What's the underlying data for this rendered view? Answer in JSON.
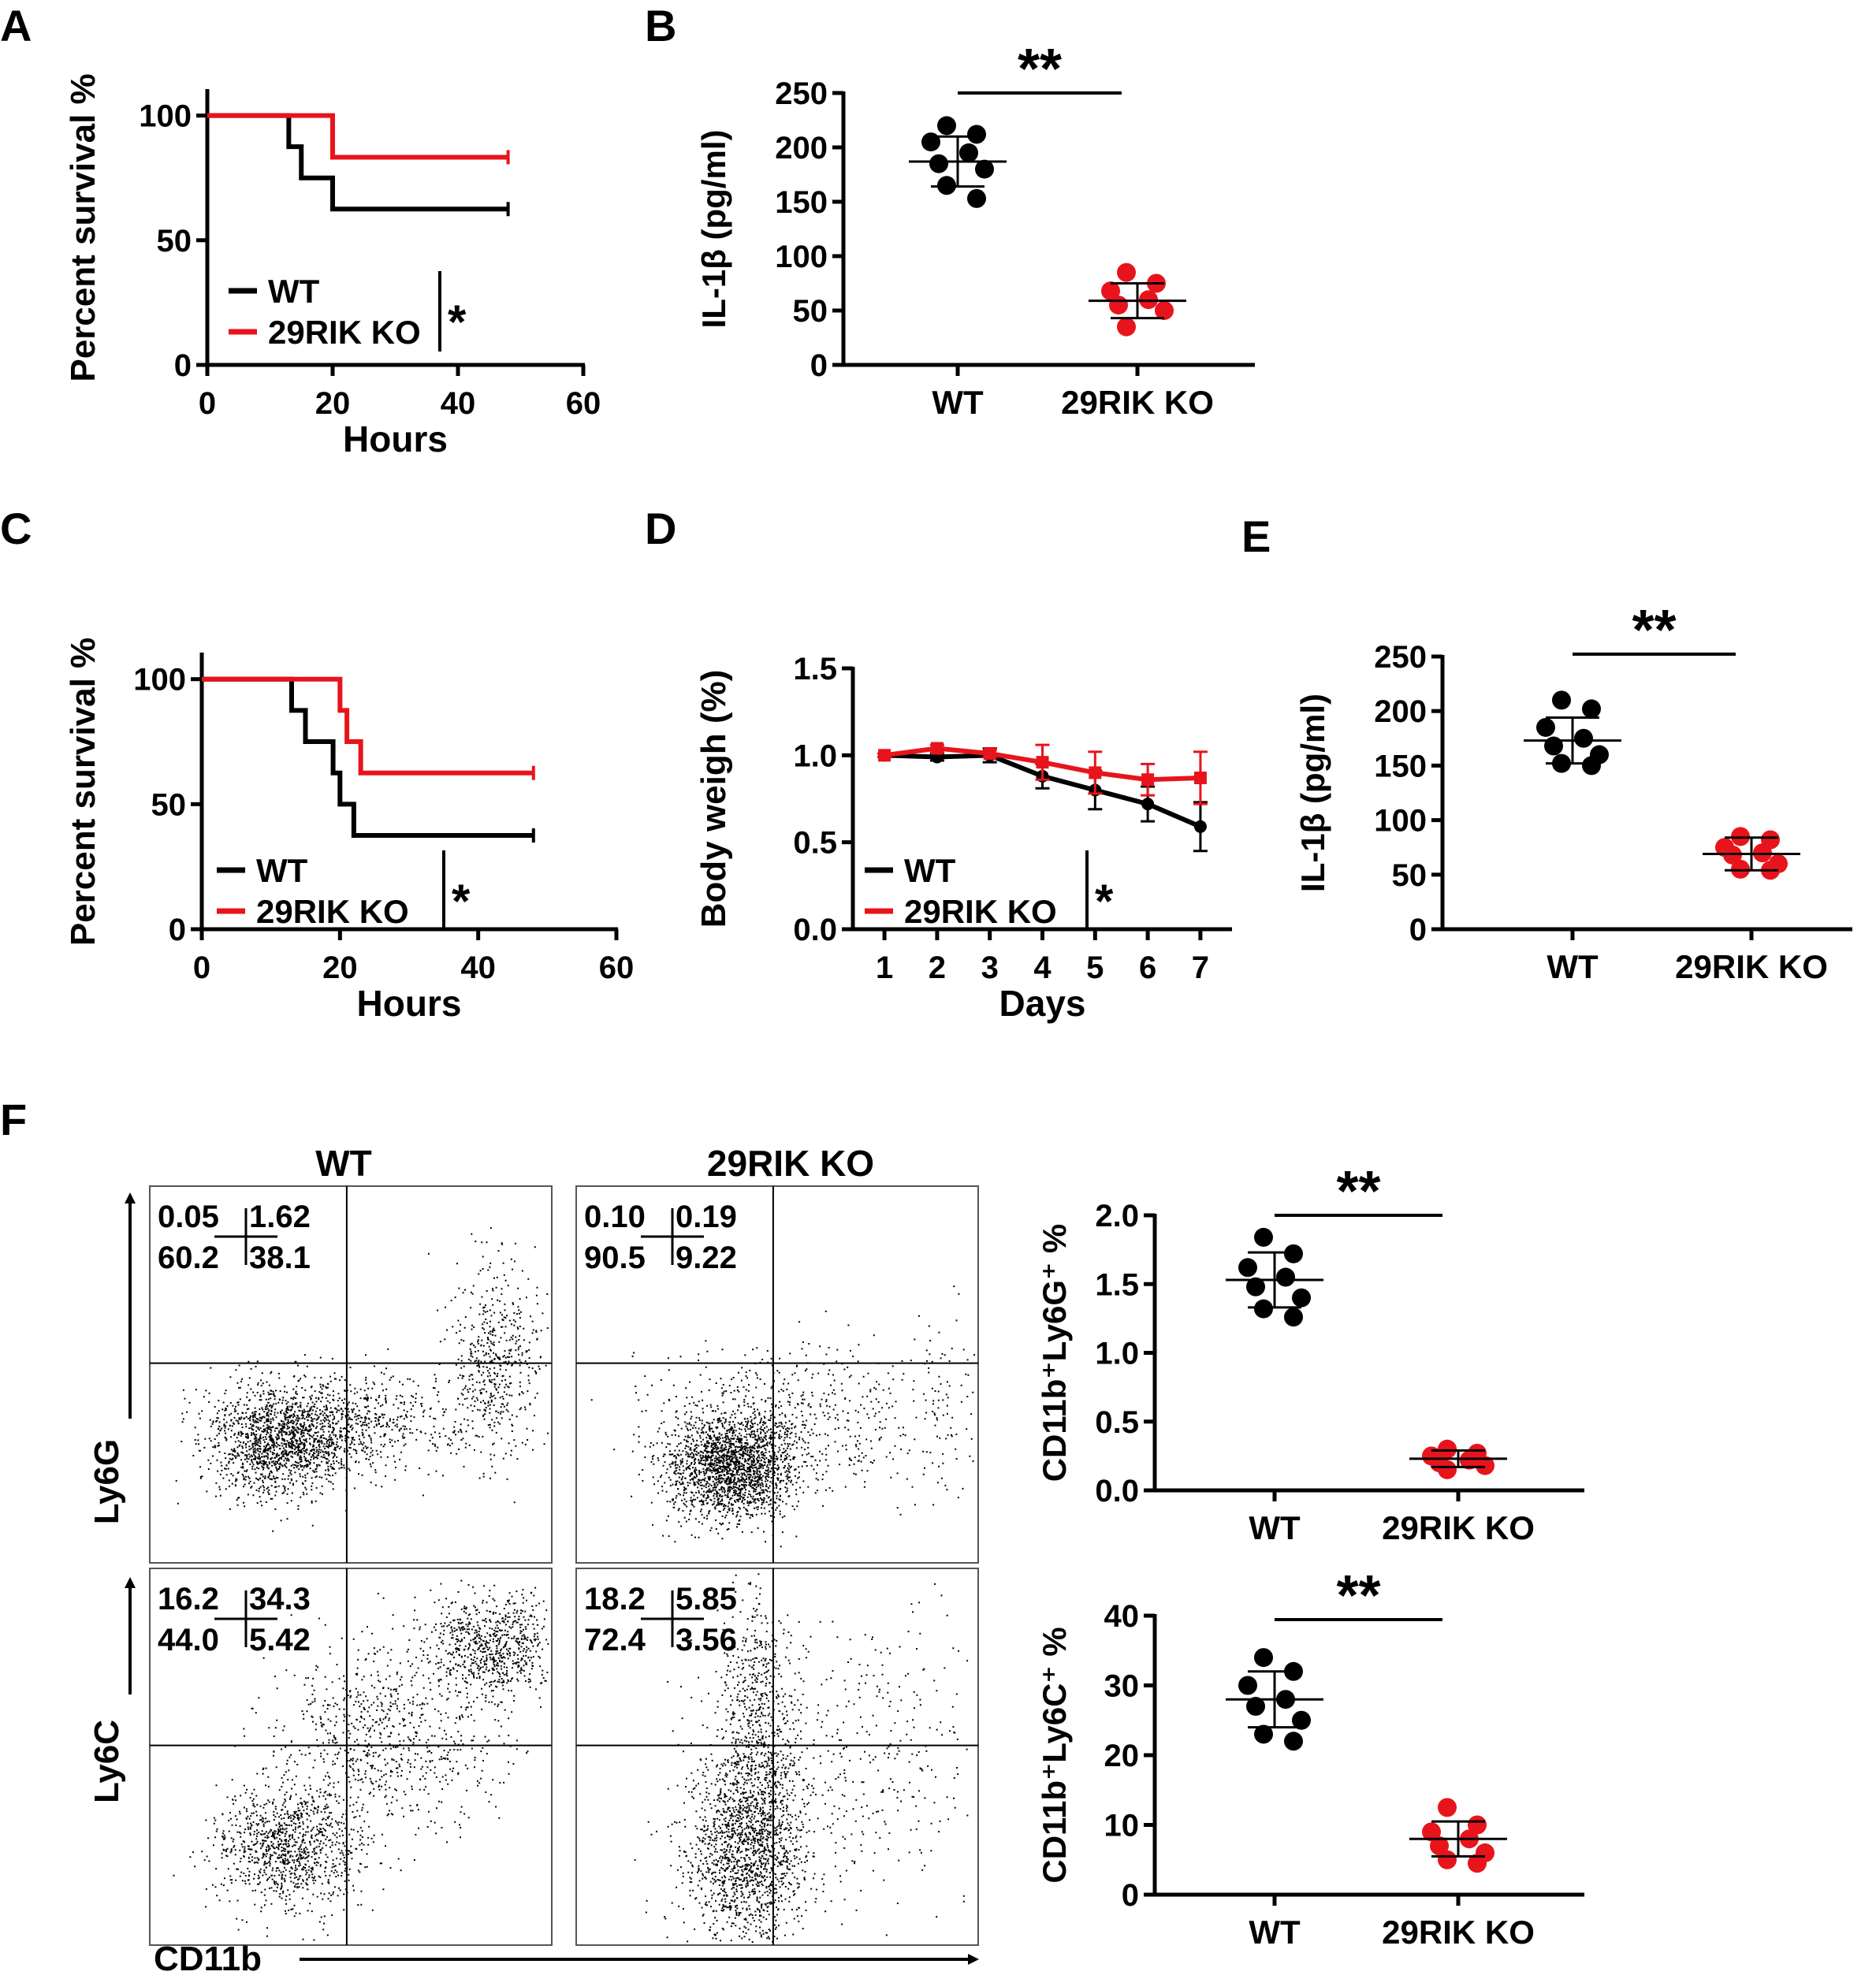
{
  "colors": {
    "wt": "#000000",
    "ko": "#e8141c"
  },
  "panel_labels": {
    "a": "A",
    "b": "B",
    "c": "C",
    "d": "D",
    "e": "E",
    "f": "F"
  },
  "flow": {
    "col_wt": "WT",
    "col_ko": "29RIK KO",
    "y_label_top": "Ly6G",
    "y_label_bottom": "Ly6C",
    "x_label": "CD11b",
    "quadrants": {
      "wt_ly6g": {
        "ul": "0.05",
        "ur": "1.62",
        "ll": "60.2",
        "lr": "38.1"
      },
      "ko_ly6g": {
        "ul": "0.10",
        "ur": "0.19",
        "ll": "90.5",
        "lr": "9.22"
      },
      "wt_ly6c": {
        "ul": "16.2",
        "ur": "34.3",
        "ll": "44.0",
        "lr": "5.42"
      },
      "ko_ly6c": {
        "ul": "18.2",
        "ur": "5.85",
        "ll": "72.4",
        "lr": "3.56"
      }
    }
  },
  "chart_data": [
    {
      "id": "A",
      "type": "line",
      "title": "",
      "xlabel": "Hours",
      "ylabel": "Percent survival %",
      "xlim": [
        0,
        60
      ],
      "ylim": [
        0,
        110
      ],
      "xticks": [
        0,
        20,
        40,
        60
      ],
      "yticks": [
        0,
        50,
        100
      ],
      "significance": "*",
      "series": [
        {
          "name": "WT",
          "color": "wt",
          "steps": [
            [
              0,
              100
            ],
            [
              13,
              87.5
            ],
            [
              15,
              75
            ],
            [
              20,
              62.5
            ],
            [
              48,
              62.5
            ]
          ]
        },
        {
          "name": "29RIK KO",
          "color": "ko",
          "steps": [
            [
              0,
              100
            ],
            [
              20,
              83.3
            ],
            [
              48,
              83.3
            ]
          ]
        }
      ]
    },
    {
      "id": "B",
      "type": "scatter",
      "title": "",
      "ylabel": "IL-1β (pg/ml)",
      "categories": [
        "WT",
        "29RIK KO"
      ],
      "ylim": [
        0,
        250
      ],
      "yticks": [
        0,
        50,
        100,
        150,
        200,
        250
      ],
      "significance": "**",
      "groups": [
        {
          "name": "WT",
          "color": "wt",
          "mean": 187,
          "sd": 23,
          "values": [
            220,
            212,
            205,
            195,
            185,
            180,
            165,
            153
          ]
        },
        {
          "name": "29RIK KO",
          "color": "ko",
          "mean": 59,
          "sd": 16,
          "values": [
            85,
            75,
            68,
            60,
            55,
            50,
            35
          ]
        }
      ]
    },
    {
      "id": "C",
      "type": "line",
      "title": "",
      "xlabel": "Hours",
      "ylabel": "Percent survival %",
      "xlim": [
        0,
        60
      ],
      "ylim": [
        0,
        110
      ],
      "xticks": [
        0,
        20,
        40,
        60
      ],
      "yticks": [
        0,
        50,
        100
      ],
      "significance": "*",
      "series": [
        {
          "name": "WT",
          "color": "wt",
          "steps": [
            [
              0,
              100
            ],
            [
              13,
              87.5
            ],
            [
              15,
              75
            ],
            [
              19,
              62.5
            ],
            [
              20,
              50
            ],
            [
              22,
              37.5
            ],
            [
              48,
              37.5
            ]
          ]
        },
        {
          "name": "29RIK KO",
          "color": "ko",
          "steps": [
            [
              0,
              100
            ],
            [
              20,
              87.5
            ],
            [
              21,
              75
            ],
            [
              23,
              62.5
            ],
            [
              48,
              62.5
            ]
          ]
        }
      ]
    },
    {
      "id": "D",
      "type": "line",
      "title": "",
      "xlabel": "Days",
      "ylabel": "Body weigh (%)",
      "x": [
        1,
        2,
        3,
        4,
        5,
        6,
        7
      ],
      "xlim": [
        0.4,
        7.6
      ],
      "ylim": [
        0,
        1.5
      ],
      "xticks": [
        1,
        2,
        3,
        4,
        5,
        6,
        7
      ],
      "yticks": [
        0.0,
        0.5,
        1.0,
        1.5
      ],
      "significance": "*",
      "series": [
        {
          "name": "WT",
          "color": "wt",
          "values": [
            1.0,
            0.99,
            1.0,
            0.88,
            0.8,
            0.72,
            0.59
          ],
          "err": [
            0.01,
            0.02,
            0.04,
            0.07,
            0.11,
            0.1,
            0.14
          ]
        },
        {
          "name": "29RIK KO",
          "color": "ko",
          "values": [
            1.0,
            1.04,
            1.01,
            0.96,
            0.9,
            0.86,
            0.87
          ],
          "err": [
            0.01,
            0.02,
            0.02,
            0.1,
            0.12,
            0.09,
            0.15
          ]
        }
      ]
    },
    {
      "id": "E",
      "type": "scatter",
      "title": "",
      "ylabel": "IL-1β (pg/ml)",
      "categories": [
        "WT",
        "29RIK KO"
      ],
      "ylim": [
        0,
        250
      ],
      "yticks": [
        0,
        50,
        100,
        150,
        200,
        250
      ],
      "significance": "**",
      "groups": [
        {
          "name": "WT",
          "color": "wt",
          "mean": 173,
          "sd": 21,
          "values": [
            210,
            202,
            185,
            175,
            168,
            160,
            152,
            150
          ]
        },
        {
          "name": "29RIK KO",
          "color": "ko",
          "mean": 69,
          "sd": 15,
          "values": [
            85,
            82,
            75,
            70,
            68,
            60,
            55,
            54
          ]
        }
      ]
    },
    {
      "id": "F1",
      "type": "scatter",
      "title": "",
      "ylabel": "CD11b⁺Ly6G⁺ %",
      "categories": [
        "WT",
        "29RIK KO"
      ],
      "ylim": [
        0,
        2.0
      ],
      "yticks": [
        0.0,
        0.5,
        1.0,
        1.5,
        2.0
      ],
      "significance": "**",
      "groups": [
        {
          "name": "WT",
          "color": "wt",
          "mean": 1.53,
          "sd": 0.2,
          "values": [
            1.84,
            1.72,
            1.62,
            1.55,
            1.48,
            1.4,
            1.32,
            1.26
          ]
        },
        {
          "name": "29RIK KO",
          "color": "ko",
          "mean": 0.23,
          "sd": 0.06,
          "values": [
            0.3,
            0.27,
            0.25,
            0.22,
            0.2,
            0.18,
            0.15
          ]
        }
      ]
    },
    {
      "id": "F2",
      "type": "scatter",
      "title": "",
      "ylabel": "CD11b⁺Ly6C⁺ %",
      "categories": [
        "WT",
        "29RIK KO"
      ],
      "ylim": [
        0,
        40
      ],
      "yticks": [
        0,
        10,
        20,
        30,
        40
      ],
      "significance": "**",
      "groups": [
        {
          "name": "WT",
          "color": "wt",
          "mean": 28,
          "sd": 4,
          "values": [
            34,
            32,
            30,
            28,
            27,
            25,
            23,
            22
          ]
        },
        {
          "name": "29RIK KO",
          "color": "ko",
          "mean": 8,
          "sd": 2.5,
          "values": [
            12.5,
            10,
            9,
            8,
            7,
            6,
            5,
            4.5
          ]
        }
      ]
    }
  ]
}
